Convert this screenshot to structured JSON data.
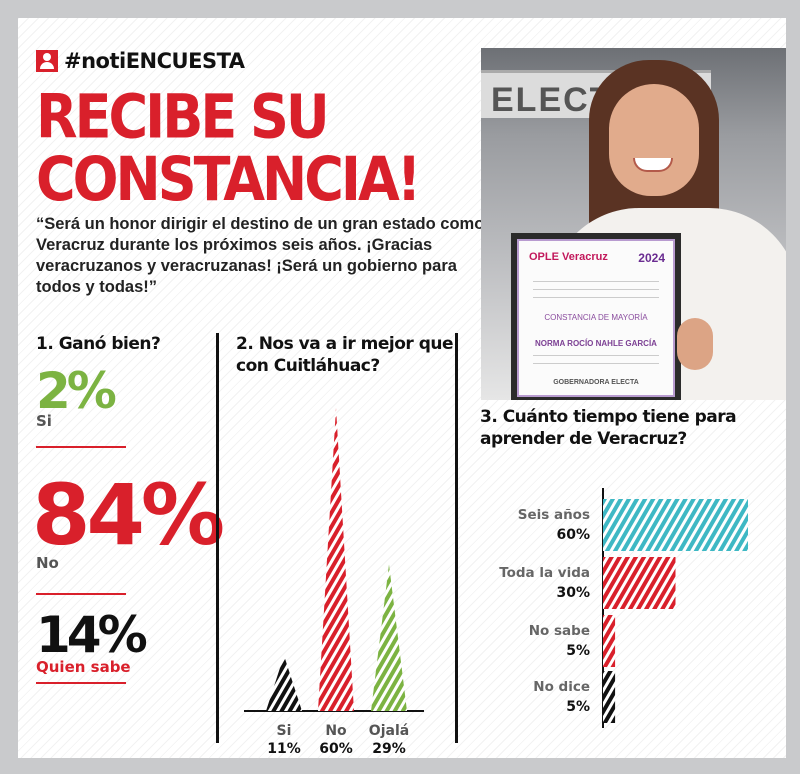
{
  "brand": {
    "hashtag": "#notiENCUESTA"
  },
  "headline": {
    "line1": "RECIBE SU",
    "line2": "CONSTANCIA!"
  },
  "quote": "“Será un honor dirigir el destino de un gran estado como Veracruz durante los próximos seis años. ¡Gracias veracruzanos y veracruzanas! ¡Será un gobierno para todos y todas!”",
  "photo": {
    "sign_text": "ELECTORAL",
    "cert_brand": "OPLE Veracruz",
    "cert_year": "2024",
    "cert_heading": "CONSTANCIA DE MAYORÍA",
    "cert_name": "NORMA ROCÍO NAHLE GARCÍA",
    "cert_role": "GOBERNADORA ELECTA"
  },
  "colors": {
    "red": "#d9202b",
    "green": "#7cb342",
    "teal": "#3eb8c4",
    "black": "#111111"
  },
  "chart_data": [
    {
      "type": "table",
      "title": "1. Ganó bien?",
      "categories": [
        "Si",
        "No",
        "Quien sabe"
      ],
      "values": [
        2,
        84,
        14
      ],
      "value_labels": [
        "2%",
        "84%",
        "14%"
      ],
      "colors": [
        "#7cb342",
        "#d9202b",
        "#111111"
      ]
    },
    {
      "type": "bar",
      "title": "2. Nos va a ir mejor que con Cuitláhuac?",
      "categories": [
        "Si",
        "No",
        "Ojalá"
      ],
      "values": [
        11,
        60,
        29
      ],
      "value_labels": [
        "11%",
        "60%",
        "29%"
      ],
      "colors": [
        "#111111",
        "#d9202b",
        "#7cb342"
      ],
      "ylim": [
        0,
        60
      ]
    },
    {
      "type": "bar",
      "orientation": "horizontal",
      "title": "3. Cuánto tiempo tiene para aprender de Veracruz?",
      "categories": [
        "Seis años",
        "Toda la vida",
        "No sabe",
        "No dice"
      ],
      "values": [
        60,
        30,
        5,
        5
      ],
      "value_labels": [
        "60%",
        "30%",
        "5%",
        "5%"
      ],
      "colors": [
        "#3eb8c4",
        "#d9202b",
        "#d9202b",
        "#111111"
      ],
      "xlim": [
        0,
        60
      ]
    }
  ]
}
